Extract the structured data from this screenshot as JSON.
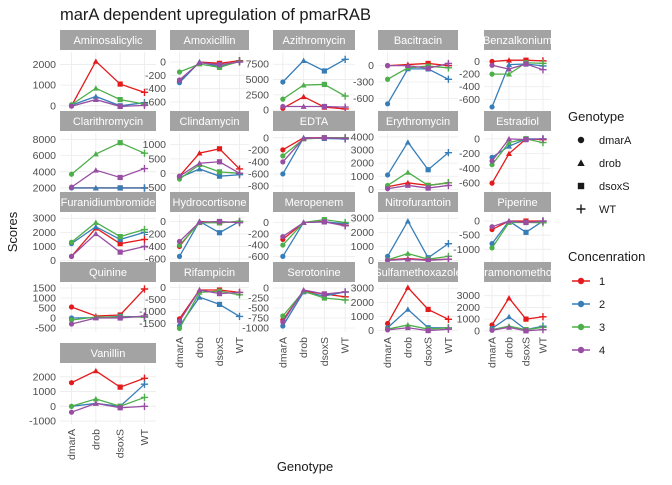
{
  "chart_data": {
    "type": "line",
    "title": "marA dependent upregulation of pmarRAB",
    "xlabel": "Genotype",
    "ylabel": "Scores",
    "categories": [
      "dmarA",
      "drob",
      "dsoxS",
      "WT"
    ],
    "legend_shape": {
      "title": "Genotype",
      "items": [
        {
          "label": "dmarA",
          "shape": "circle"
        },
        {
          "label": "drob",
          "shape": "triangle"
        },
        {
          "label": "dsoxS",
          "shape": "square"
        },
        {
          "label": "WT",
          "shape": "plus"
        }
      ]
    },
    "legend_color": {
      "title": "Concenration",
      "items": [
        {
          "label": "1",
          "color": "#E41A1C"
        },
        {
          "label": "2",
          "color": "#377EB8"
        },
        {
          "label": "3",
          "color": "#4DAF4A"
        },
        {
          "label": "4",
          "color": "#984EA3"
        }
      ]
    },
    "panels": [
      {
        "title": "Aminosalicylic",
        "ylim": [
          -300,
          2600
        ],
        "ticks": [
          0,
          1000,
          2000
        ],
        "series": [
          {
            "name": "1",
            "values": [
              0,
              2150,
              1050,
              650
            ]
          },
          {
            "name": "2",
            "values": [
              30,
              450,
              0,
              150
            ]
          },
          {
            "name": "3",
            "values": [
              50,
              850,
              300,
              80
            ]
          },
          {
            "name": "4",
            "values": [
              -20,
              300,
              -30,
              20
            ]
          }
        ]
      },
      {
        "title": "Amoxicillin",
        "ylim": [
          -750,
          150
        ],
        "ticks": [
          -600,
          -400,
          -200,
          0
        ],
        "series": [
          {
            "name": "1",
            "values": [
              -300,
              0,
              -20,
              20
            ]
          },
          {
            "name": "2",
            "values": [
              -310,
              0,
              -70,
              10
            ]
          },
          {
            "name": "3",
            "values": [
              -150,
              -30,
              -80,
              10
            ]
          },
          {
            "name": "4",
            "values": [
              -270,
              -10,
              -40,
              0
            ]
          }
        ]
      },
      {
        "title": "Azithromycin",
        "ylim": [
          -300,
          9500
        ],
        "ticks": [
          0,
          2500,
          5000,
          7500
        ],
        "series": [
          {
            "name": "1",
            "values": [
              300,
              2200,
              500,
              200
            ]
          },
          {
            "name": "2",
            "values": [
              4600,
              8100,
              6400,
              8300
            ]
          },
          {
            "name": "3",
            "values": [
              1800,
              4100,
              4200,
              2300
            ]
          },
          {
            "name": "4",
            "values": [
              600,
              600,
              600,
              500
            ]
          }
        ]
      },
      {
        "title": "Bacitracin",
        "ylim": [
          -850,
          250
        ],
        "ticks": [
          -600,
          -300,
          0
        ],
        "series": [
          {
            "name": "1",
            "values": [
              0,
              20,
              40,
              0
            ]
          },
          {
            "name": "2",
            "values": [
              -700,
              -60,
              -60,
              -250
            ]
          },
          {
            "name": "3",
            "values": [
              -250,
              -40,
              -10,
              -40
            ]
          },
          {
            "name": "4",
            "values": [
              0,
              0,
              -50,
              40
            ]
          }
        ]
      },
      {
        "title": "Benzalkonium",
        "ylim": [
          -800,
          150
        ],
        "ticks": [
          -600,
          -400,
          -200,
          0
        ],
        "series": [
          {
            "name": "1",
            "values": [
              0,
              20,
              20,
              10
            ]
          },
          {
            "name": "2",
            "values": [
              -720,
              -50,
              -40,
              -70
            ]
          },
          {
            "name": "3",
            "values": [
              -200,
              -200,
              -20,
              -30
            ]
          },
          {
            "name": "4",
            "values": [
              -60,
              -120,
              -40,
              -130
            ]
          }
        ]
      },
      {
        "title": "Clarithromycin",
        "ylim": [
          1500,
          8800
        ],
        "ticks": [
          2000,
          4000,
          6000,
          8000
        ],
        "series": [
          {
            "name": "1",
            "values": [
              2000,
              2000,
              2000,
              2000
            ]
          },
          {
            "name": "2",
            "values": [
              2000,
              2000,
              2000,
              2000
            ]
          },
          {
            "name": "3",
            "values": [
              3700,
              6200,
              7600,
              6300
            ]
          },
          {
            "name": "4",
            "values": [
              2100,
              4200,
              3300,
              4400
            ]
          }
        ]
      },
      {
        "title": "Clindamycin",
        "ylim": [
          -650,
          1400
        ],
        "ticks": [
          -500,
          0,
          500,
          1000
        ],
        "series": [
          {
            "name": "1",
            "values": [
              -100,
              700,
              850,
              150
            ]
          },
          {
            "name": "2",
            "values": [
              -150,
              150,
              -100,
              -50
            ]
          },
          {
            "name": "3",
            "values": [
              -200,
              300,
              50,
              0
            ]
          },
          {
            "name": "4",
            "values": [
              -100,
              350,
              400,
              0
            ]
          }
        ]
      },
      {
        "title": "EDTA",
        "ylim": [
          -900,
          80
        ],
        "ticks": [
          -800,
          -600,
          -400,
          -200,
          0
        ],
        "series": [
          {
            "name": "1",
            "values": [
              -200,
              0,
              0,
              0
            ]
          },
          {
            "name": "2",
            "values": [
              -600,
              0,
              -10,
              -20
            ]
          },
          {
            "name": "3",
            "values": [
              -300,
              -20,
              0,
              0
            ]
          },
          {
            "name": "4",
            "values": [
              -400,
              -10,
              0,
              -10
            ]
          }
        ]
      },
      {
        "title": "Erythromycin",
        "ylim": [
          -200,
          4300
        ],
        "ticks": [
          0,
          1000,
          2000,
          3000,
          4000
        ],
        "series": [
          {
            "name": "1",
            "values": [
              200,
              500,
              300,
              500
            ]
          },
          {
            "name": "2",
            "values": [
              1100,
              3600,
              1500,
              2800
            ]
          },
          {
            "name": "3",
            "values": [
              300,
              1300,
              300,
              500
            ]
          },
          {
            "name": "4",
            "values": [
              50,
              300,
              100,
              300
            ]
          }
        ]
      },
      {
        "title": "Estradiol",
        "ylim": [
          -720,
          80
        ],
        "ticks": [
          -600,
          -400,
          -200,
          0
        ],
        "series": [
          {
            "name": "1",
            "values": [
              -600,
              -200,
              0,
              -10
            ]
          },
          {
            "name": "2",
            "values": [
              -250,
              -100,
              0,
              0
            ]
          },
          {
            "name": "3",
            "values": [
              -350,
              -50,
              0,
              -50
            ]
          },
          {
            "name": "4",
            "values": [
              -300,
              0,
              -10,
              0
            ]
          }
        ]
      },
      {
        "title": "Furanidiumbromide",
        "ylim": [
          -100,
          3300
        ],
        "ticks": [
          0,
          1000,
          2000,
          3000
        ],
        "series": [
          {
            "name": "1",
            "values": [
              300,
              2300,
              1200,
              1500
            ]
          },
          {
            "name": "2",
            "values": [
              1200,
              2400,
              1500,
              2000
            ]
          },
          {
            "name": "3",
            "values": [
              1300,
              2700,
              1700,
              2200
            ]
          },
          {
            "name": "4",
            "values": [
              300,
              1900,
              600,
              1000
            ]
          }
        ]
      },
      {
        "title": "Hydrocortisone",
        "ylim": [
          -650,
          120
        ],
        "ticks": [
          -600,
          -400,
          -200,
          0
        ],
        "series": [
          {
            "name": "1",
            "values": [
              -400,
              0,
              -20,
              0
            ]
          },
          {
            "name": "2",
            "values": [
              -560,
              0,
              -180,
              0
            ]
          },
          {
            "name": "3",
            "values": [
              -380,
              -20,
              -20,
              0
            ]
          },
          {
            "name": "4",
            "values": [
              -320,
              -10,
              0,
              -20
            ]
          }
        ]
      },
      {
        "title": "Meropenem",
        "ylim": [
          -700,
          150
        ],
        "ticks": [
          -600,
          -400,
          -200,
          0
        ],
        "series": [
          {
            "name": "1",
            "values": [
              -300,
              0,
              20,
              -50
            ]
          },
          {
            "name": "2",
            "values": [
              -600,
              0,
              10,
              -20
            ]
          },
          {
            "name": "3",
            "values": [
              -400,
              0,
              50,
              0
            ]
          },
          {
            "name": "4",
            "values": [
              -250,
              0,
              10,
              -60
            ]
          }
        ]
      },
      {
        "title": "Nitrofurantoin",
        "ylim": [
          -100,
          3300
        ],
        "ticks": [
          0,
          1000,
          2000,
          3000
        ],
        "series": [
          {
            "name": "1",
            "values": [
              50,
              150,
              50,
              100
            ]
          },
          {
            "name": "2",
            "values": [
              300,
              2800,
              200,
              1200
            ]
          },
          {
            "name": "3",
            "values": [
              50,
              500,
              100,
              300
            ]
          },
          {
            "name": "4",
            "values": [
              20,
              100,
              20,
              100
            ]
          }
        ]
      },
      {
        "title": "Piperine",
        "ylim": [
          -1450,
          250
        ],
        "ticks": [
          -1000,
          -500,
          0
        ],
        "series": [
          {
            "name": "1",
            "values": [
              -300,
              0,
              0,
              0
            ]
          },
          {
            "name": "2",
            "values": [
              -800,
              0,
              -400,
              0
            ]
          },
          {
            "name": "3",
            "values": [
              -950,
              -50,
              -50,
              -60
            ]
          },
          {
            "name": "4",
            "values": [
              -200,
              0,
              -50,
              -10
            ]
          }
        ]
      },
      {
        "title": "Quinine",
        "ylim": [
          -700,
          1700
        ],
        "ticks": [
          -500,
          0,
          500,
          1000,
          1500
        ],
        "series": [
          {
            "name": "1",
            "values": [
              550,
              100,
              150,
              1450
            ]
          },
          {
            "name": "2",
            "values": [
              0,
              20,
              80,
              50
            ]
          },
          {
            "name": "3",
            "values": [
              -100,
              50,
              50,
              50
            ]
          },
          {
            "name": "4",
            "values": [
              -300,
              0,
              0,
              100
            ]
          }
        ]
      },
      {
        "title": "Rifampicin",
        "ylim": [
          -1850,
          150
        ],
        "ticks": [
          -1500,
          -1000,
          -500,
          0
        ],
        "series": [
          {
            "name": "1",
            "values": [
              -1300,
              -100,
              -100,
              -200
            ]
          },
          {
            "name": "2",
            "values": [
              -1600,
              -400,
              -700,
              -1200
            ]
          },
          {
            "name": "3",
            "values": [
              -1700,
              -200,
              -150,
              -300
            ]
          },
          {
            "name": "4",
            "values": [
              -1400,
              -100,
              -250,
              -200
            ]
          }
        ]
      },
      {
        "title": "Serotonine",
        "ylim": [
          -1100,
          100
        ],
        "ticks": [
          -1000,
          -750,
          -500,
          -250,
          0
        ],
        "series": [
          {
            "name": "1",
            "values": [
              -800,
              -80,
              -150,
              -220
            ]
          },
          {
            "name": "2",
            "values": [
              -950,
              -100,
              -200,
              -100
            ]
          },
          {
            "name": "3",
            "values": [
              -700,
              -80,
              -250,
              -300
            ]
          },
          {
            "name": "4",
            "values": [
              -850,
              -50,
              -150,
              -100
            ]
          }
        ]
      },
      {
        "title": "Sulfamethoxazole",
        "ylim": [
          -100,
          3300
        ],
        "ticks": [
          0,
          1000,
          2000,
          3000
        ],
        "series": [
          {
            "name": "1",
            "values": [
              500,
              3050,
              1500,
              800
            ]
          },
          {
            "name": "2",
            "values": [
              200,
              1500,
              200,
              200
            ]
          },
          {
            "name": "3",
            "values": [
              100,
              400,
              100,
              200
            ]
          },
          {
            "name": "4",
            "values": [
              50,
              200,
              0,
              100
            ]
          }
        ]
      },
      {
        "title": "Tetramonomethoxyl",
        "ylim": [
          -100,
          4000
        ],
        "ticks": [
          0,
          1000,
          2000,
          3000
        ],
        "series": [
          {
            "name": "1",
            "values": [
              500,
              2800,
              1000,
              1200
            ]
          },
          {
            "name": "2",
            "values": [
              200,
              1200,
              100,
              400
            ]
          },
          {
            "name": "3",
            "values": [
              100,
              400,
              100,
              300
            ]
          },
          {
            "name": "4",
            "values": [
              50,
              300,
              0,
              100
            ]
          }
        ]
      },
      {
        "title": "Vanillin",
        "ylim": [
          -1200,
          2800
        ],
        "ticks": [
          -1000,
          0,
          1000,
          2000
        ],
        "series": [
          {
            "name": "1",
            "values": [
              1600,
              2400,
              1300,
              1900
            ]
          },
          {
            "name": "2",
            "values": [
              0,
              200,
              0,
              1500
            ]
          },
          {
            "name": "3",
            "values": [
              0,
              500,
              0,
              600
            ]
          },
          {
            "name": "4",
            "values": [
              -400,
              200,
              -100,
              0
            ]
          }
        ]
      }
    ]
  }
}
